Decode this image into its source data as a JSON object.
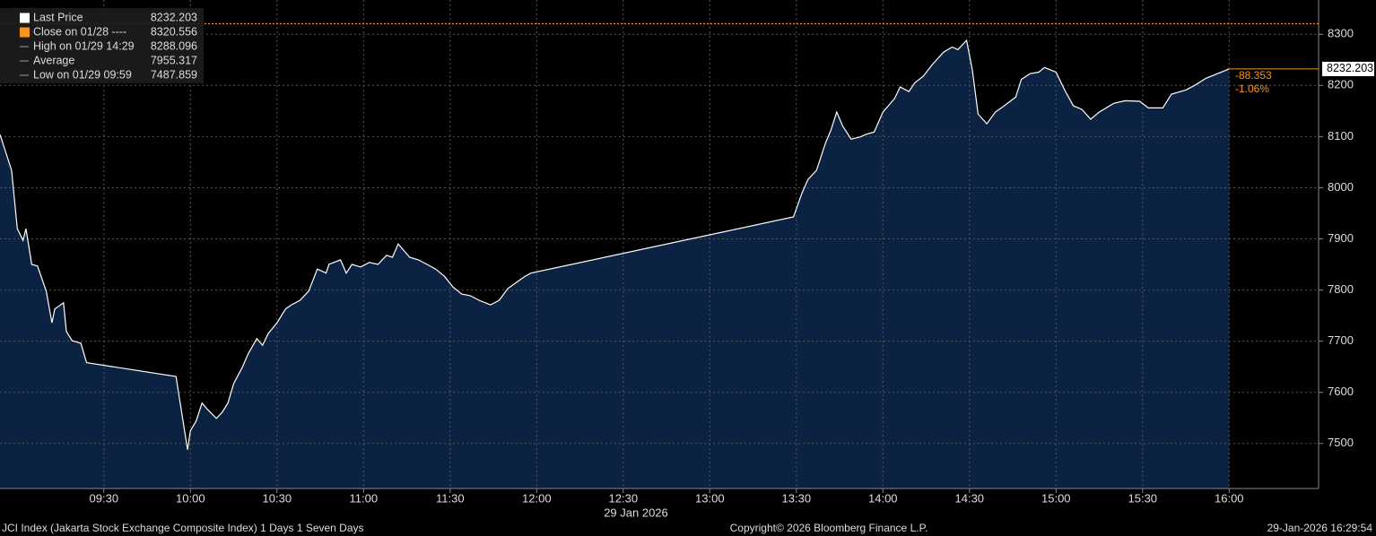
{
  "chart_data": {
    "type": "area",
    "x": [
      "08:54",
      "08:58",
      "09:00",
      "09:02",
      "09:03",
      "09:05",
      "09:07",
      "09:10",
      "09:12",
      "09:13",
      "09:16",
      "09:17",
      "09:19",
      "09:22",
      "09:24",
      "09:55",
      "09:59",
      "10:00",
      "10:02",
      "10:04",
      "10:06",
      "10:09",
      "10:11",
      "10:13",
      "10:15",
      "10:18",
      "10:20",
      "10:23",
      "10:25",
      "10:27",
      "10:30",
      "10:33",
      "10:35",
      "10:38",
      "10:41",
      "10:44",
      "10:47",
      "10:48",
      "10:52",
      "10:54",
      "10:56",
      "10:59",
      "11:02",
      "11:05",
      "11:08",
      "11:10",
      "11:12",
      "11:16",
      "11:19",
      "11:22",
      "11:25",
      "11:28",
      "11:31",
      "11:34",
      "11:37",
      "11:40",
      "11:44",
      "11:47",
      "11:50",
      "11:53",
      "11:56",
      "11:58",
      "13:29",
      "13:32",
      "13:34",
      "13:37",
      "13:40",
      "13:42",
      "13:44",
      "13:46",
      "13:49",
      "13:52",
      "13:54",
      "13:57",
      "14:00",
      "14:04",
      "14:06",
      "14:09",
      "14:11",
      "14:14",
      "14:17",
      "14:21",
      "14:24",
      "14:26",
      "14:29",
      "14:31",
      "14:33",
      "14:36",
      "14:39",
      "14:42",
      "14:46",
      "14:48",
      "14:51",
      "14:54",
      "14:56",
      "15:00",
      "15:03",
      "15:06",
      "15:09",
      "15:12",
      "15:15",
      "15:20",
      "15:24",
      "15:29",
      "15:32",
      "15:37",
      "15:40",
      "15:45",
      "15:48",
      "15:52",
      "16:00"
    ],
    "series": [
      {
        "name": "Last Price",
        "color": "#ffffff",
        "fill": "#0b2242",
        "values": [
          8104,
          8034,
          7920,
          7897,
          7920,
          7850,
          7847,
          7798,
          7736,
          7763,
          7775,
          7719,
          7701,
          7696,
          7658,
          7631,
          7487.859,
          7525,
          7544,
          7579,
          7566,
          7549,
          7561,
          7579,
          7617,
          7649,
          7675,
          7705,
          7692,
          7715,
          7736,
          7763,
          7771,
          7780,
          7798,
          7841,
          7833,
          7850,
          7859,
          7833,
          7850,
          7845,
          7854,
          7850,
          7868,
          7864,
          7890,
          7864,
          7859,
          7850,
          7841,
          7827,
          7806,
          7792,
          7789,
          7780,
          7771,
          7780,
          7803,
          7815,
          7827,
          7833,
          7943,
          7990,
          8016,
          8034,
          8086,
          8113,
          8148,
          8121,
          8095,
          8099,
          8104,
          8109,
          8148,
          8174,
          8197,
          8188,
          8205,
          8218,
          8240,
          8265,
          8275,
          8270,
          8288.096,
          8230,
          8144,
          8125,
          8148,
          8160,
          8177,
          8212,
          8223,
          8226,
          8235,
          8226,
          8191,
          8160,
          8153,
          8134,
          8148,
          8165,
          8170,
          8169,
          8156,
          8156,
          8183,
          8191,
          8200,
          8214,
          8232.203
        ]
      }
    ],
    "xlim": [
      "08:54",
      "16:31"
    ],
    "xticks": [
      "09:30",
      "10:00",
      "10:30",
      "11:00",
      "11:30",
      "12:00",
      "12:30",
      "13:00",
      "13:30",
      "14:00",
      "14:30",
      "15:00",
      "15:30",
      "16:00"
    ],
    "x_date_label": "29 Jan 2026",
    "ylim": [
      7412,
      8367
    ],
    "yticks": [
      7500,
      7600,
      7700,
      7800,
      7900,
      8000,
      8100,
      8200,
      8300
    ],
    "grid": true,
    "legend": [
      {
        "label": "Last Price",
        "value": 8232.203,
        "color": "#ffffff"
      },
      {
        "label": "Close on 01/28 ----",
        "value": 8320.556,
        "color": "#f7931e"
      },
      {
        "label": "High on 01/29 14:29",
        "value": 8288.096
      },
      {
        "label": "Average",
        "value": 7955.317
      },
      {
        "label": "Low on 01/29 09:59",
        "value": 7487.859
      }
    ],
    "change": -88.353,
    "change_pct": "-1.06%",
    "footer": {
      "left": "JCI Index (Jakarta Stock Exchange Composite Index) 1 Days 1 Seven Days",
      "center": "Copyright© 2026 Bloomberg Finance L.P.",
      "right": "29-Jan-2026 16:29:54"
    }
  }
}
